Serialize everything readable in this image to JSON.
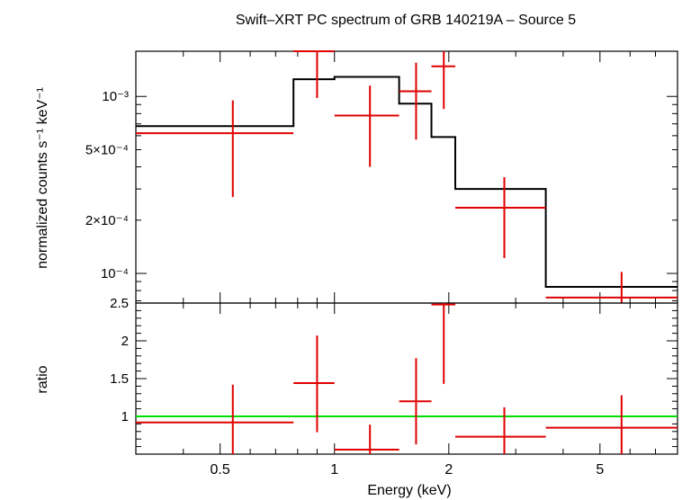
{
  "chart_data": {
    "type": "spectrum",
    "title": "Swift–XRT PC spectrum of GRB 140219A – Source 5",
    "x": {
      "label": "Energy (keV)",
      "scale": "log",
      "range": [
        0.3,
        8.0
      ],
      "major_ticks": [
        0.5,
        1,
        2,
        5
      ],
      "major_tick_labels": [
        "0.5",
        "1",
        "2",
        "5"
      ]
    },
    "top_panel": {
      "ylabel": "normalized counts s⁻¹ keV⁻¹",
      "scale": "log",
      "yrange": [
        6.8e-05,
        0.0018
      ],
      "ytick_values": [
        0.001,
        0.0005,
        0.0002,
        0.0001
      ],
      "ytick_labels": [
        "10⁻³",
        "5×10⁻⁴",
        "2×10⁻⁴",
        "10⁻⁴"
      ],
      "data": [
        {
          "x": 0.54,
          "xlo": 0.3,
          "xhi": 0.78,
          "y": 0.00062,
          "ylo": 0.00027,
          "yhi": 0.00095
        },
        {
          "x": 0.9,
          "xlo": 0.78,
          "xhi": 1.0,
          "y": 0.0018,
          "ylo": 0.00098,
          "yhi": 0.0019
        },
        {
          "x": 1.24,
          "xlo": 1.0,
          "xhi": 1.48,
          "y": 0.00078,
          "ylo": 0.0004,
          "yhi": 0.00115
        },
        {
          "x": 1.64,
          "xlo": 1.48,
          "xhi": 1.8,
          "y": 0.00107,
          "ylo": 0.00057,
          "yhi": 0.00155
        },
        {
          "x": 1.94,
          "xlo": 1.8,
          "xhi": 2.08,
          "y": 0.00148,
          "ylo": 0.00085,
          "yhi": 0.0019
        },
        {
          "x": 2.8,
          "xlo": 2.08,
          "xhi": 3.6,
          "y": 0.000235,
          "ylo": 0.000122,
          "yhi": 0.00035
        },
        {
          "x": 5.7,
          "xlo": 3.6,
          "xhi": 8.0,
          "y": 7.3e-05,
          "ylo": 6.8e-05,
          "yhi": 0.000102
        }
      ],
      "model": [
        {
          "xlo": 0.3,
          "xhi": 0.78,
          "y": 0.00068
        },
        {
          "xlo": 0.78,
          "xhi": 1.0,
          "y": 0.00125
        },
        {
          "xlo": 1.0,
          "xhi": 1.48,
          "y": 0.00129
        },
        {
          "xlo": 1.48,
          "xhi": 1.8,
          "y": 0.00091
        },
        {
          "xlo": 1.8,
          "xhi": 2.08,
          "y": 0.00059
        },
        {
          "xlo": 2.08,
          "xhi": 3.6,
          "y": 0.0003
        },
        {
          "xlo": 3.6,
          "xhi": 8.0,
          "y": 8.4e-05
        }
      ]
    },
    "bottom_panel": {
      "ylabel": "ratio",
      "scale": "linear",
      "yrange": [
        0.5,
        2.5
      ],
      "ytick_values": [
        1,
        1.5,
        2,
        2.5
      ],
      "ytick_labels": [
        "1",
        "1.5",
        "2",
        "2.5"
      ],
      "reference_line": 1,
      "data": [
        {
          "x": 0.54,
          "xlo": 0.3,
          "xhi": 0.78,
          "y": 0.92,
          "ylo": 0.5,
          "yhi": 1.42
        },
        {
          "x": 0.9,
          "xlo": 0.78,
          "xhi": 1.0,
          "y": 1.44,
          "ylo": 0.79,
          "yhi": 2.07
        },
        {
          "x": 1.24,
          "xlo": 1.0,
          "xhi": 1.48,
          "y": 0.56,
          "ylo": 0.5,
          "yhi": 0.89
        },
        {
          "x": 1.64,
          "xlo": 1.48,
          "xhi": 1.8,
          "y": 1.2,
          "ylo": 0.63,
          "yhi": 1.77
        },
        {
          "x": 1.94,
          "xlo": 1.8,
          "xhi": 2.08,
          "y": 2.48,
          "ylo": 1.43,
          "yhi": 2.5
        },
        {
          "x": 2.8,
          "xlo": 2.08,
          "xhi": 3.6,
          "y": 0.73,
          "ylo": 0.5,
          "yhi": 1.12
        },
        {
          "x": 5.7,
          "xlo": 3.6,
          "xhi": 8.0,
          "y": 0.85,
          "ylo": 0.5,
          "yhi": 1.28
        }
      ]
    },
    "colors": {
      "data": "#e00000",
      "model": "#000000",
      "reference": "#00dd00"
    }
  }
}
